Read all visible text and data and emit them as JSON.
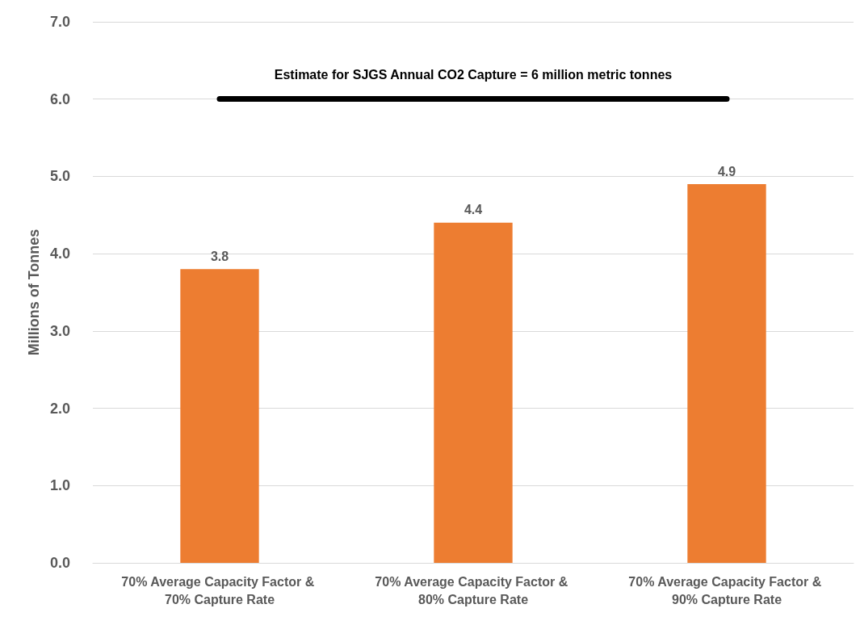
{
  "chart_data": {
    "type": "bar",
    "ylabel": "Millions of Tonnes",
    "categories": [
      "70% Average Capacity Factor & 70% Capture Rate",
      "70% Average Capacity Factor & 80% Capture Rate",
      "70% Average Capacity Factor & 90% Capture Rate"
    ],
    "values": [
      3.8,
      4.4,
      4.9
    ],
    "color": "#ed7d31",
    "data_labels": true,
    "ylim": [
      0,
      7
    ],
    "yticks": [
      {
        "value": 0,
        "label": "0.0"
      },
      {
        "value": 1,
        "label": "1.0"
      },
      {
        "value": 2,
        "label": "2.0"
      },
      {
        "value": 3,
        "label": "3.0"
      },
      {
        "value": 4,
        "label": "4.0"
      },
      {
        "value": 5,
        "label": "5.0"
      },
      {
        "value": 6,
        "label": "6.0"
      },
      {
        "value": 7,
        "label": "7.0"
      }
    ],
    "grid": "y",
    "ref_lines": [
      {
        "axis": "y",
        "value": 6,
        "label": "Estimate for SJGS Annual CO2 Capture = 6 million metric tonnes",
        "color": "#000000",
        "line_style": "solid"
      }
    ]
  }
}
